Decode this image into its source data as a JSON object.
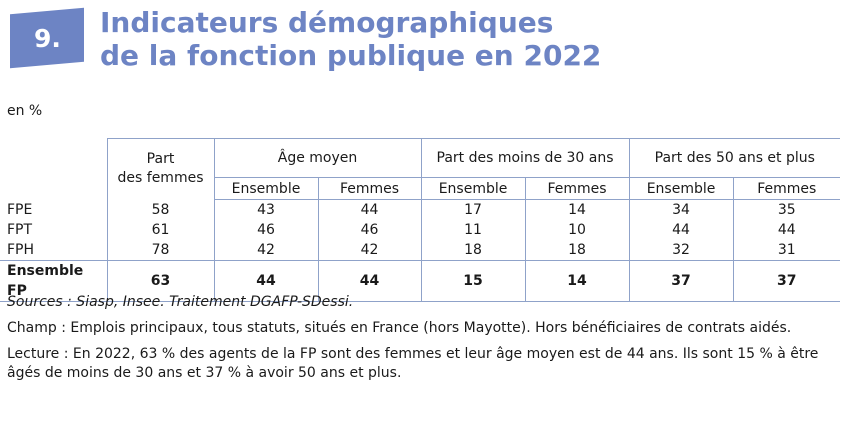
{
  "colors": {
    "accent": "#6d84c4",
    "rule": "#8fa2c9"
  },
  "badge": {
    "number": "9."
  },
  "title": {
    "line1": "Indicateurs démographiques",
    "line2": "de la fonction publique en 2022"
  },
  "unit": "en %",
  "table": {
    "head": {
      "part_femmes": {
        "line1": "Part",
        "line2": "des femmes"
      },
      "groups": [
        "Âge moyen",
        "Part des moins de 30 ans",
        "Part des 50 ans et plus"
      ],
      "sub": [
        "Ensemble",
        "Femmes",
        "Ensemble",
        "Femmes",
        "Ensemble",
        "Femmes"
      ]
    },
    "rows": [
      {
        "label": "FPE",
        "values": [
          "58",
          "43",
          "44",
          "17",
          "14",
          "34",
          "35"
        ]
      },
      {
        "label": "FPT",
        "values": [
          "61",
          "46",
          "46",
          "11",
          "10",
          "44",
          "44"
        ]
      },
      {
        "label": "FPH",
        "values": [
          "78",
          "42",
          "42",
          "18",
          "18",
          "32",
          "31"
        ]
      }
    ],
    "total": {
      "label": "Ensemble FP",
      "values": [
        "63",
        "44",
        "44",
        "15",
        "14",
        "37",
        "37"
      ]
    }
  },
  "notes": {
    "sources": "Sources : Siasp, Insee. Traitement DGAFP-SDessi.",
    "champ": "Champ : Emplois principaux, tous statuts, situés en France (hors Mayotte). Hors bénéficiaires de contrats aidés.",
    "lecture": "Lecture : En 2022, 63 % des agents de la FP sont des femmes et leur âge moyen est de 44 ans. Ils sont 15 % à être âgés de moins de 30 ans et 37 % à avoir 50 ans et plus."
  }
}
